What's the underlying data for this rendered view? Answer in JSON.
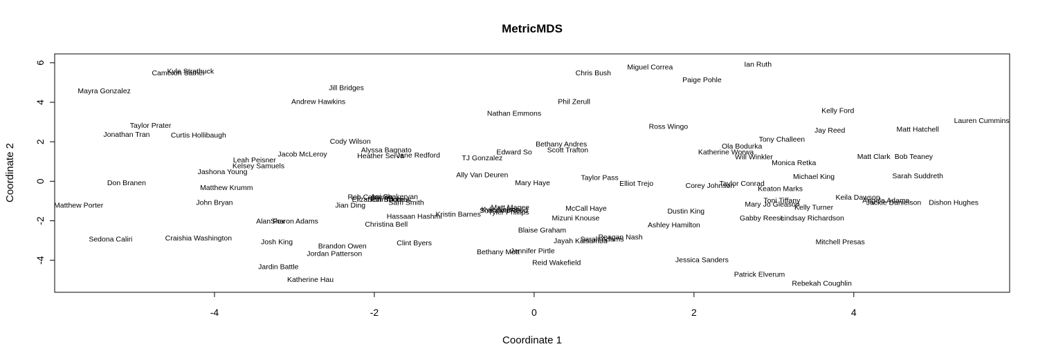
{
  "chart_data": {
    "type": "scatter",
    "title": "MetricMDS",
    "xlabel": "Coordinate 1",
    "ylabel": "Coordinate 2",
    "xlim": [
      -6.0,
      5.95
    ],
    "ylim": [
      -5.62,
      6.45
    ],
    "x_ticks": [
      -4,
      -2,
      0,
      2,
      4
    ],
    "y_ticks": [
      -4,
      -2,
      0,
      2,
      4,
      6
    ],
    "grid": false,
    "points": [
      {
        "label": "Kyle Strathuck",
        "x": -4.3,
        "y": 5.6
      },
      {
        "label": "Cameron Sather",
        "x": -4.45,
        "y": 5.5
      },
      {
        "label": "Mayra Gonzalez",
        "x": -5.38,
        "y": 4.6
      },
      {
        "label": "Taylor Prater",
        "x": -4.8,
        "y": 2.85
      },
      {
        "label": "Jonathan Tran",
        "x": -5.1,
        "y": 2.4
      },
      {
        "label": "Curtis Hollibaugh",
        "x": -4.2,
        "y": 2.35
      },
      {
        "label": "Andrew Hawkins",
        "x": -2.7,
        "y": 4.05
      },
      {
        "label": "Jill Bridges",
        "x": -2.35,
        "y": 4.75
      },
      {
        "label": "Cody Wilson",
        "x": -2.3,
        "y": 2.05
      },
      {
        "label": "Jacob McLeroy",
        "x": -2.9,
        "y": 1.4
      },
      {
        "label": "Alyssa Bagnato",
        "x": -1.85,
        "y": 1.6
      },
      {
        "label": "Heather Serva",
        "x": -1.92,
        "y": 1.3
      },
      {
        "label": "Jane Redford",
        "x": -1.45,
        "y": 1.35
      },
      {
        "label": "Leah Peisner",
        "x": -3.5,
        "y": 1.1
      },
      {
        "label": "Kelsey Samuels",
        "x": -3.45,
        "y": 0.8
      },
      {
        "label": "Jashona Young",
        "x": -3.9,
        "y": 0.5
      },
      {
        "label": "Don Branen",
        "x": -5.1,
        "y": -0.05
      },
      {
        "label": "Matthew Krumm",
        "x": -3.85,
        "y": -0.3
      },
      {
        "label": "Matthew Porter",
        "x": -5.7,
        "y": -1.2
      },
      {
        "label": "John Bryan",
        "x": -4.0,
        "y": -1.05
      },
      {
        "label": "Ani Shakeryan",
        "x": -1.75,
        "y": -0.75
      },
      {
        "label": "Rob Cameron",
        "x": -2.05,
        "y": -0.78
      },
      {
        "label": "Tom Thomas",
        "x": -1.8,
        "y": -0.9
      },
      {
        "label": "Elizabeth Boone",
        "x": -1.95,
        "y": -0.9
      },
      {
        "label": "Sam Smith",
        "x": -1.6,
        "y": -1.05
      },
      {
        "label": "Jian Ding",
        "x": -2.3,
        "y": -1.2
      },
      {
        "label": "Hassaan Hashmi",
        "x": -1.5,
        "y": -1.75
      },
      {
        "label": "Christina Bell",
        "x": -1.85,
        "y": -2.15
      },
      {
        "label": "Kristin Barnes",
        "x": -0.95,
        "y": -1.65
      },
      {
        "label": "Alan Fox",
        "x": -3.3,
        "y": -2.0
      },
      {
        "label": "Sharon Adams",
        "x": -3.0,
        "y": -2.0
      },
      {
        "label": "Sedona Caliri",
        "x": -5.3,
        "y": -2.9
      },
      {
        "label": "Craishia Washington",
        "x": -4.2,
        "y": -2.85
      },
      {
        "label": "Josh King",
        "x": -3.22,
        "y": -3.05
      },
      {
        "label": "Brandon Owen",
        "x": -2.4,
        "y": -3.25
      },
      {
        "label": "Jordan Patterson",
        "x": -2.5,
        "y": -3.65
      },
      {
        "label": "Clint Byers",
        "x": -1.5,
        "y": -3.1
      },
      {
        "label": "Jardin Battle",
        "x": -3.2,
        "y": -4.3
      },
      {
        "label": "Katherine Hau",
        "x": -2.8,
        "y": -4.95
      },
      {
        "label": "Ally Van Deuren",
        "x": -0.65,
        "y": 0.35
      },
      {
        "label": "TJ Gonzalez",
        "x": -0.65,
        "y": 1.2
      },
      {
        "label": "Edward So",
        "x": -0.25,
        "y": 1.5
      },
      {
        "label": "Mary Haye",
        "x": -0.02,
        "y": -0.05
      },
      {
        "label": "Matt Magee",
        "x": -0.3,
        "y": -1.3
      },
      {
        "label": "Kyle Nelson",
        "x": -0.42,
        "y": -1.4
      },
      {
        "label": "Shannon Reed",
        "x": -0.38,
        "y": -1.45
      },
      {
        "label": "Tyler Phillips",
        "x": -0.32,
        "y": -1.55
      },
      {
        "label": "Blaise Graham",
        "x": 0.1,
        "y": -2.45
      },
      {
        "label": "Bethany Mott",
        "x": -0.45,
        "y": -3.55
      },
      {
        "label": "Jennifer Pirtle",
        "x": -0.02,
        "y": -3.5
      },
      {
        "label": "Reid Wakefield",
        "x": 0.28,
        "y": -4.1
      },
      {
        "label": "Nathan Emmons",
        "x": -0.25,
        "y": 3.45
      },
      {
        "label": "Phil Zerull",
        "x": 0.5,
        "y": 4.05
      },
      {
        "label": "Chris Bush",
        "x": 0.74,
        "y": 5.5
      },
      {
        "label": "Bethany Andres",
        "x": 0.34,
        "y": 1.9
      },
      {
        "label": "Scott Trafton",
        "x": 0.42,
        "y": 1.6
      },
      {
        "label": "Taylor Pass",
        "x": 0.82,
        "y": 0.2
      },
      {
        "label": "Elliot Trejo",
        "x": 1.28,
        "y": -0.1
      },
      {
        "label": "McCall Haye",
        "x": 0.65,
        "y": -1.35
      },
      {
        "label": "Mizuni Knouse",
        "x": 0.52,
        "y": -1.85
      },
      {
        "label": "Jayah Kalsamba",
        "x": 0.58,
        "y": -3.0
      },
      {
        "label": "Sarah Adams",
        "x": 0.85,
        "y": -2.9
      },
      {
        "label": "Reagan Nash",
        "x": 1.08,
        "y": -2.8
      },
      {
        "label": "Miguel Correa",
        "x": 1.45,
        "y": 5.8
      },
      {
        "label": "Ian Ruth",
        "x": 2.8,
        "y": 5.95
      },
      {
        "label": "Paige Pohle",
        "x": 2.1,
        "y": 5.15
      },
      {
        "label": "Ross Wingo",
        "x": 1.68,
        "y": 2.8
      },
      {
        "label": "Ola Bodurka",
        "x": 2.6,
        "y": 1.8
      },
      {
        "label": "Katherine Worwa",
        "x": 2.4,
        "y": 1.5
      },
      {
        "label": "Will Winkler",
        "x": 2.75,
        "y": 1.25
      },
      {
        "label": "Tony Challeen",
        "x": 3.1,
        "y": 2.15
      },
      {
        "label": "Monica Retka",
        "x": 3.25,
        "y": 0.95
      },
      {
        "label": "Corey Johnson",
        "x": 2.2,
        "y": -0.2
      },
      {
        "label": "Taylor Conrad",
        "x": 2.6,
        "y": -0.1
      },
      {
        "label": "Keaton Marks",
        "x": 3.08,
        "y": -0.35
      },
      {
        "label": "Michael King",
        "x": 3.5,
        "y": 0.25
      },
      {
        "label": "Dustin King",
        "x": 1.9,
        "y": -1.5
      },
      {
        "label": "Ashley Hamilton",
        "x": 1.75,
        "y": -2.2
      },
      {
        "label": "Mary Jo Gleason",
        "x": 2.98,
        "y": -1.15
      },
      {
        "label": "Toni Tiffany",
        "x": 3.1,
        "y": -0.95
      },
      {
        "label": "Kelly Turner",
        "x": 3.5,
        "y": -1.3
      },
      {
        "label": "Gabby Reese",
        "x": 2.85,
        "y": -1.85
      },
      {
        "label": "Lindsay Richardson",
        "x": 3.48,
        "y": -1.85
      },
      {
        "label": "Jessica Sanders",
        "x": 2.1,
        "y": -3.95
      },
      {
        "label": "Patrick Elverum",
        "x": 2.82,
        "y": -4.7
      },
      {
        "label": "Rebekah Coughlin",
        "x": 3.6,
        "y": -5.15
      },
      {
        "label": "Mitchell Presas",
        "x": 3.83,
        "y": -3.05
      },
      {
        "label": "Kelly Ford",
        "x": 3.8,
        "y": 3.6
      },
      {
        "label": "Jay Reed",
        "x": 3.7,
        "y": 2.6
      },
      {
        "label": "Matt Hatchell",
        "x": 4.8,
        "y": 2.65
      },
      {
        "label": "Lauren Cummins",
        "x": 5.6,
        "y": 3.1
      },
      {
        "label": "Matt Clark",
        "x": 4.25,
        "y": 1.28
      },
      {
        "label": "Bob Teaney",
        "x": 4.75,
        "y": 1.28
      },
      {
        "label": "Sarah Suddreth",
        "x": 4.8,
        "y": 0.3
      },
      {
        "label": "Keila Dawson",
        "x": 4.05,
        "y": -0.8
      },
      {
        "label": "Angela Adams",
        "x": 4.4,
        "y": -0.95
      },
      {
        "label": "Jackie Danielson",
        "x": 4.5,
        "y": -1.05
      },
      {
        "label": "Dishon Hughes",
        "x": 5.25,
        "y": -1.05
      }
    ]
  }
}
